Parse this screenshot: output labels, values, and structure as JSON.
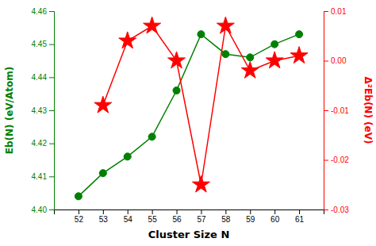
{
  "chart_data": {
    "type": "line",
    "xlabel": "Cluster Size N",
    "ylabel": "Eb(N) (eV/Atom)",
    "y2label": "Δ²Eb(N) (eV)",
    "x": [
      52,
      53,
      54,
      55,
      56,
      57,
      58,
      59,
      60,
      61
    ],
    "series": [
      {
        "color": "#008000",
        "marker": "circle",
        "values": [
          4.404,
          4.411,
          4.416,
          4.422,
          4.436,
          4.453,
          4.447,
          4.446,
          4.45,
          4.453
        ]
      },
      {
        "color": "#ff0000",
        "marker": "star",
        "axis": "y2",
        "values": [
          null,
          -0.009,
          0.004,
          0.007,
          0.0,
          -0.025,
          0.007,
          -0.002,
          0.0,
          0.001
        ]
      }
    ],
    "xlim": [
      51,
      62
    ],
    "xticks": [
      52,
      53,
      54,
      55,
      56,
      57,
      58,
      59,
      60,
      61
    ],
    "ylim": [
      4.4,
      4.46
    ],
    "yticks": [
      {
        "value": 4.4,
        "label": "4.40"
      },
      4.41,
      4.42,
      4.43,
      4.44,
      4.45,
      4.46
    ],
    "y2lim": [
      -0.03,
      0.01
    ],
    "y2ticks": [
      -0.03,
      -0.02,
      -0.01,
      {
        "value": 0,
        "label": "0.00"
      },
      0.01
    ],
    "grid": false
  }
}
